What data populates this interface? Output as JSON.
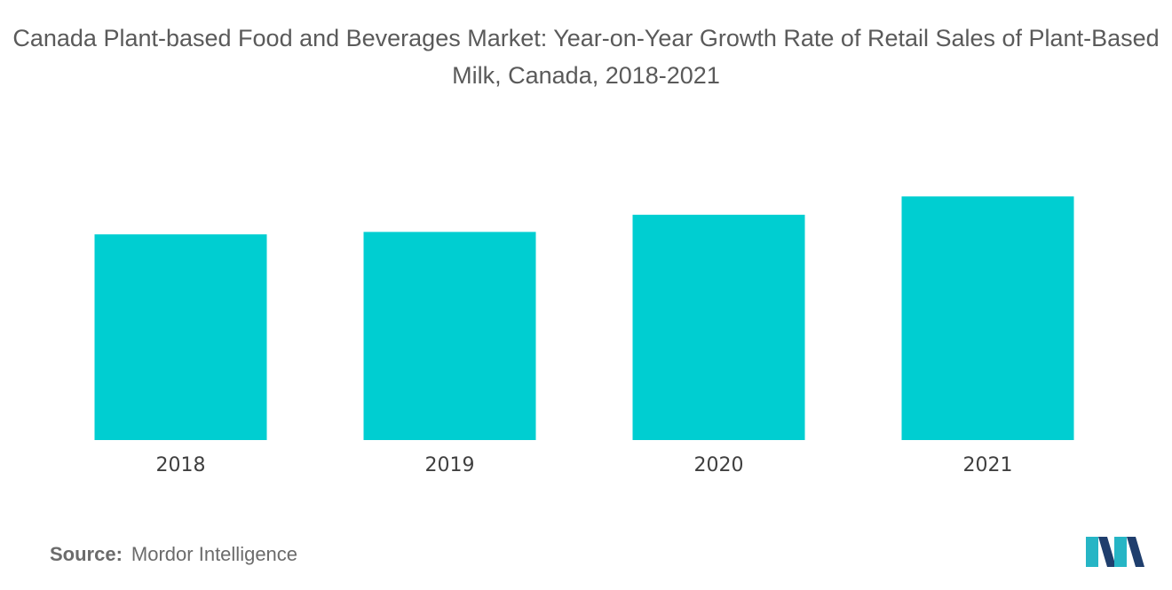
{
  "title": "Canada Plant-based Food and Beverages Market: Year-on-Year Growth Rate of Retail Sales of Plant-Based Milk, Canada, 2018-2021",
  "source": {
    "label": "Source:",
    "text": "Mordor Intelligence"
  },
  "colors": {
    "bar": "#00CED1",
    "title": "#5a5a5a",
    "logo_dark": "#1f3e6d",
    "logo_light": "#26b5c5"
  },
  "chart_data": {
    "type": "bar",
    "categories": [
      "2018",
      "2019",
      "2020",
      "2021"
    ],
    "values": [
      84,
      85,
      92,
      99.5
    ],
    "ylim": [
      0,
      100
    ],
    "xlabel": "",
    "ylabel": "",
    "grid": false,
    "legend": "none"
  }
}
